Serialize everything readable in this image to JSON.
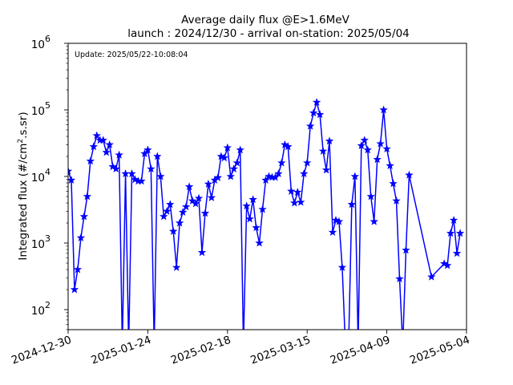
{
  "chart_data": {
    "type": "line",
    "title": "Average daily flux @E>1.6MeV",
    "subtitle": "launch : 2024/12/30 - arrival on-station: 2025/05/04",
    "annotation": "Update: 2025/05/22-10:08:04",
    "ylabel_main": "Integrated flux (#/cm",
    "ylabel_sup": "2",
    "ylabel_tail": ".s.sr)",
    "xlabel": "",
    "x_start": "2024-12-30",
    "x_ticks": [
      "2024-12-30",
      "2025-01-24",
      "2025-02-18",
      "2025-03-15",
      "2025-04-09",
      "2025-05-04"
    ],
    "xlim": [
      "2024-12-30",
      "2025-05-04"
    ],
    "ylim": [
      50,
      1000000
    ],
    "yscale": "log",
    "y_ticks": [
      {
        "base": "10",
        "exp": "2"
      },
      {
        "base": "10",
        "exp": "3"
      },
      {
        "base": "10",
        "exp": "4"
      },
      {
        "base": "10",
        "exp": "5"
      },
      {
        "base": "10",
        "exp": "6"
      }
    ],
    "grid": false,
    "color": "#0000ff",
    "marker": "star",
    "series": [
      {
        "points": [
          [
            "2024-12-30",
            12000
          ],
          [
            "2024-12-31",
            8800
          ],
          [
            "2025-01-01",
            200
          ],
          [
            "2025-01-02",
            400
          ],
          [
            "2025-01-03",
            1200
          ],
          [
            "2025-01-04",
            2500
          ],
          [
            "2025-01-05",
            5000
          ],
          [
            "2025-01-06",
            17000
          ],
          [
            "2025-01-07",
            28000
          ],
          [
            "2025-01-08",
            41000
          ],
          [
            "2025-01-09",
            35000
          ],
          [
            "2025-01-10",
            35000
          ],
          [
            "2025-01-11",
            23000
          ],
          [
            "2025-01-12",
            30000
          ],
          [
            "2025-01-13",
            14000
          ],
          [
            "2025-01-14",
            13000
          ],
          [
            "2025-01-15",
            21000
          ],
          [
            "2025-01-16",
            null
          ],
          [
            "2025-01-17",
            11000
          ],
          [
            "2025-01-18",
            null
          ],
          [
            "2025-01-19",
            11000
          ],
          [
            "2025-01-20",
            9000
          ],
          [
            "2025-01-21",
            8500
          ],
          [
            "2025-01-22",
            8500
          ],
          [
            "2025-01-23",
            22000
          ],
          [
            "2025-01-24",
            25000
          ],
          [
            "2025-01-25",
            13000
          ],
          [
            "2025-01-26",
            null
          ],
          [
            "2025-01-27",
            20000
          ],
          [
            "2025-01-28",
            10000
          ],
          [
            "2025-01-29",
            2500
          ],
          [
            "2025-01-30",
            3000
          ],
          [
            "2025-01-31",
            3800
          ],
          [
            "2025-02-01",
            1500
          ],
          [
            "2025-02-02",
            430
          ],
          [
            "2025-02-03",
            2000
          ],
          [
            "2025-02-04",
            2900
          ],
          [
            "2025-02-05",
            3500
          ],
          [
            "2025-02-06",
            7000
          ],
          [
            "2025-02-07",
            4300
          ],
          [
            "2025-02-08",
            3900
          ],
          [
            "2025-02-09",
            4700
          ],
          [
            "2025-02-10",
            720
          ],
          [
            "2025-02-11",
            2800
          ],
          [
            "2025-02-12",
            7700
          ],
          [
            "2025-02-13",
            4800
          ],
          [
            "2025-02-14",
            8800
          ],
          [
            "2025-02-15",
            9600
          ],
          [
            "2025-02-16",
            20000
          ],
          [
            "2025-02-17",
            19000
          ],
          [
            "2025-02-18",
            27000
          ],
          [
            "2025-02-19",
            10000
          ],
          [
            "2025-02-20",
            13000
          ],
          [
            "2025-02-21",
            16000
          ],
          [
            "2025-02-22",
            25000
          ],
          [
            "2025-02-23",
            null
          ],
          [
            "2025-02-24",
            3600
          ],
          [
            "2025-02-25",
            2300
          ],
          [
            "2025-02-26",
            4500
          ],
          [
            "2025-02-27",
            1700
          ],
          [
            "2025-02-28",
            1000
          ],
          [
            "2025-03-01",
            3200
          ],
          [
            "2025-03-02",
            8800
          ],
          [
            "2025-03-03",
            10000
          ],
          [
            "2025-03-04",
            9700
          ],
          [
            "2025-03-05",
            9700
          ],
          [
            "2025-03-06",
            11000
          ],
          [
            "2025-03-07",
            16000
          ],
          [
            "2025-03-08",
            30000
          ],
          [
            "2025-03-09",
            28000
          ],
          [
            "2025-03-10",
            6000
          ],
          [
            "2025-03-11",
            4000
          ],
          [
            "2025-03-12",
            5800
          ],
          [
            "2025-03-13",
            4100
          ],
          [
            "2025-03-14",
            11000
          ],
          [
            "2025-03-15",
            16000
          ],
          [
            "2025-03-16",
            57000
          ],
          [
            "2025-03-17",
            90000
          ],
          [
            "2025-03-18",
            130000
          ],
          [
            "2025-03-19",
            85000
          ],
          [
            "2025-03-20",
            24000
          ],
          [
            "2025-03-21",
            12500
          ],
          [
            "2025-03-22",
            34000
          ],
          [
            "2025-03-23",
            1450
          ],
          [
            "2025-03-24",
            2200
          ],
          [
            "2025-03-25",
            2100
          ],
          [
            "2025-03-26",
            430
          ],
          [
            "2025-03-27",
            null
          ],
          [
            "2025-03-28",
            null
          ],
          [
            "2025-03-29",
            3800
          ],
          [
            "2025-03-30",
            10000
          ],
          [
            "2025-03-31",
            null
          ],
          [
            "2025-04-01",
            29000
          ],
          [
            "2025-04-02",
            35000
          ],
          [
            "2025-04-03",
            25000
          ],
          [
            "2025-04-04",
            5000
          ],
          [
            "2025-04-05",
            2100
          ],
          [
            "2025-04-06",
            18000
          ],
          [
            "2025-04-07",
            31000
          ],
          [
            "2025-04-08",
            100000
          ],
          [
            "2025-04-09",
            26000
          ],
          [
            "2025-04-10",
            14500
          ],
          [
            "2025-04-11",
            7800
          ],
          [
            "2025-04-12",
            4300
          ],
          [
            "2025-04-13",
            290
          ],
          [
            "2025-04-14",
            null
          ],
          [
            "2025-04-15",
            780
          ],
          [
            "2025-04-16",
            10500
          ],
          [
            "2025-04-23",
            310
          ],
          [
            "2025-04-27",
            490
          ],
          [
            "2025-04-28",
            460
          ],
          [
            "2025-04-29",
            1400
          ],
          [
            "2025-04-30",
            2200
          ],
          [
            "2025-05-01",
            700
          ],
          [
            "2025-05-02",
            1400
          ]
        ]
      }
    ]
  }
}
